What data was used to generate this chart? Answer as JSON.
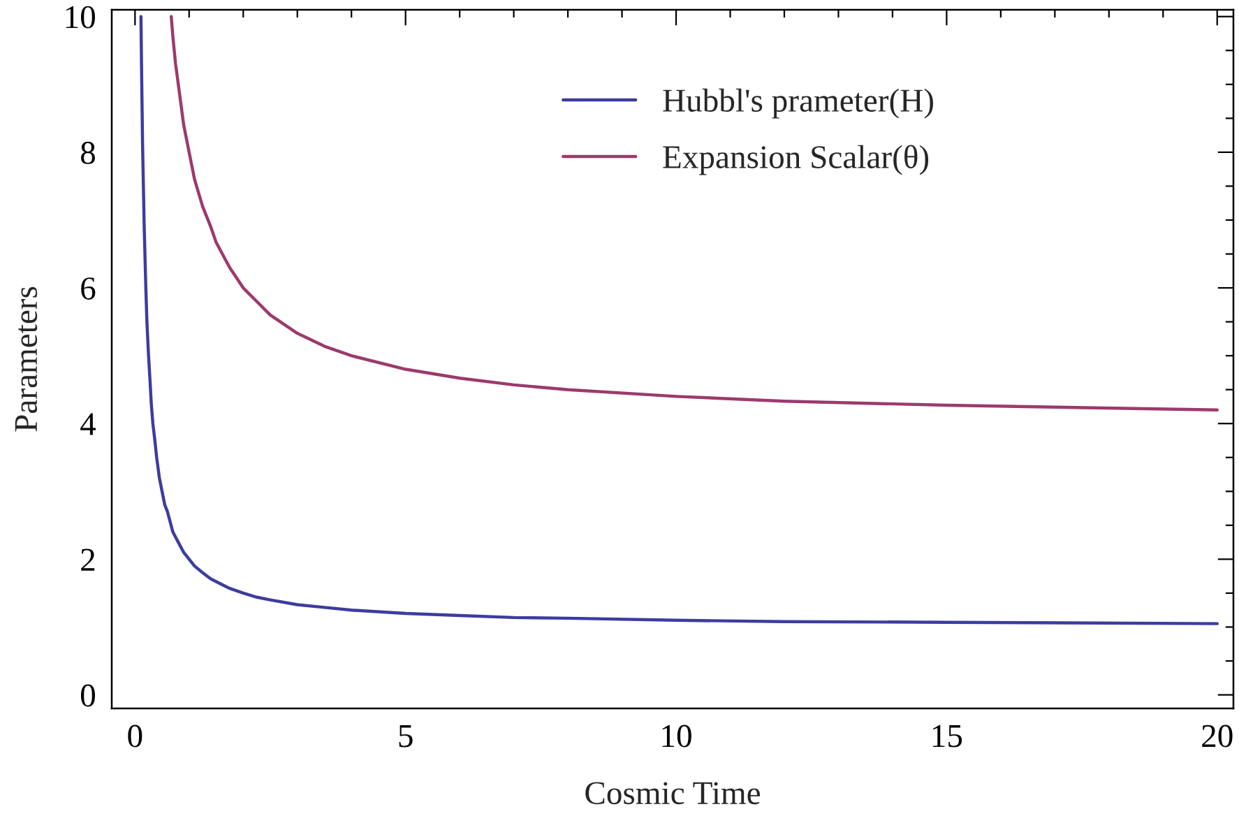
{
  "chart_data": {
    "type": "line",
    "xlabel": "Cosmic Time",
    "ylabel": "Parameters",
    "series": [
      {
        "name": "Hubbl's prameter(H)",
        "color": "#3c3ca0",
        "x": [
          0.11,
          0.12,
          0.13,
          0.14,
          0.15,
          0.17,
          0.2,
          0.22,
          0.25,
          0.28,
          0.3,
          0.33,
          0.36,
          0.4,
          0.45,
          0.5,
          0.55,
          0.6,
          0.7,
          0.8,
          0.9,
          1,
          1.1,
          1.25,
          1.4,
          1.5,
          1.75,
          2,
          2.25,
          2.5,
          3,
          3.5,
          4,
          5,
          6,
          7,
          8,
          10,
          12,
          15,
          20
        ],
        "values": [
          10.0,
          9.3,
          8.7,
          8.1,
          7.7,
          6.9,
          6.0,
          5.5,
          5.0,
          4.6,
          4.3,
          4.0,
          3.8,
          3.5,
          3.2,
          3.0,
          2.8,
          2.7,
          2.4,
          2.25,
          2.1,
          2.0,
          1.9,
          1.8,
          1.71,
          1.67,
          1.57,
          1.5,
          1.44,
          1.4,
          1.33,
          1.29,
          1.25,
          1.2,
          1.17,
          1.14,
          1.13,
          1.1,
          1.08,
          1.07,
          1.05
        ]
      },
      {
        "name": "Expansion Scalar(θ)",
        "color": "#9c3a6c",
        "x": [
          0.67,
          0.7,
          0.75,
          0.8,
          0.85,
          0.9,
          1,
          1.1,
          1.25,
          1.4,
          1.5,
          1.75,
          2,
          2.25,
          2.5,
          3,
          3.5,
          4,
          5,
          6,
          7,
          8,
          10,
          12,
          15,
          20
        ],
        "values": [
          10.0,
          9.7,
          9.3,
          9.0,
          8.7,
          8.4,
          8.0,
          7.6,
          7.2,
          6.9,
          6.67,
          6.3,
          6.0,
          5.8,
          5.6,
          5.33,
          5.14,
          5.0,
          4.8,
          4.67,
          4.57,
          4.5,
          4.4,
          4.33,
          4.27,
          4.2
        ]
      }
    ],
    "xlim": [
      -0.43,
      20.3
    ],
    "ylim": [
      -0.2,
      10.1
    ],
    "xticks": [
      0,
      {
        "value": 1,
        "label": null
      },
      {
        "value": 2,
        "label": null
      },
      {
        "value": 3,
        "label": null
      },
      {
        "value": 4,
        "label": null
      },
      5,
      {
        "value": 6,
        "label": null
      },
      {
        "value": 7,
        "label": null
      },
      {
        "value": 8,
        "label": null
      },
      {
        "value": 9,
        "label": null
      },
      10,
      {
        "value": 11,
        "label": null
      },
      {
        "value": 12,
        "label": null
      },
      {
        "value": 13,
        "label": null
      },
      {
        "value": 14,
        "label": null
      },
      15,
      {
        "value": 16,
        "label": null
      },
      {
        "value": 17,
        "label": null
      },
      {
        "value": 18,
        "label": null
      },
      {
        "value": 19,
        "label": null
      },
      20
    ],
    "yticks": [
      0,
      {
        "value": 0.5,
        "label": null
      },
      {
        "value": 1,
        "label": null
      },
      {
        "value": 1.5,
        "label": null
      },
      2,
      {
        "value": 2.5,
        "label": null
      },
      {
        "value": 3,
        "label": null
      },
      {
        "value": 3.5,
        "label": null
      },
      4,
      {
        "value": 4.5,
        "label": null
      },
      {
        "value": 5,
        "label": null
      },
      {
        "value": 5.5,
        "label": null
      },
      6,
      {
        "value": 6.5,
        "label": null
      },
      {
        "value": 7,
        "label": null
      },
      {
        "value": 7.5,
        "label": null
      },
      8,
      {
        "value": 8.5,
        "label": null
      },
      {
        "value": 9,
        "label": null
      },
      {
        "value": 9.5,
        "label": null
      },
      10
    ],
    "legend": "top right",
    "grid": false,
    "line_style": "solid",
    "marker": "none"
  }
}
